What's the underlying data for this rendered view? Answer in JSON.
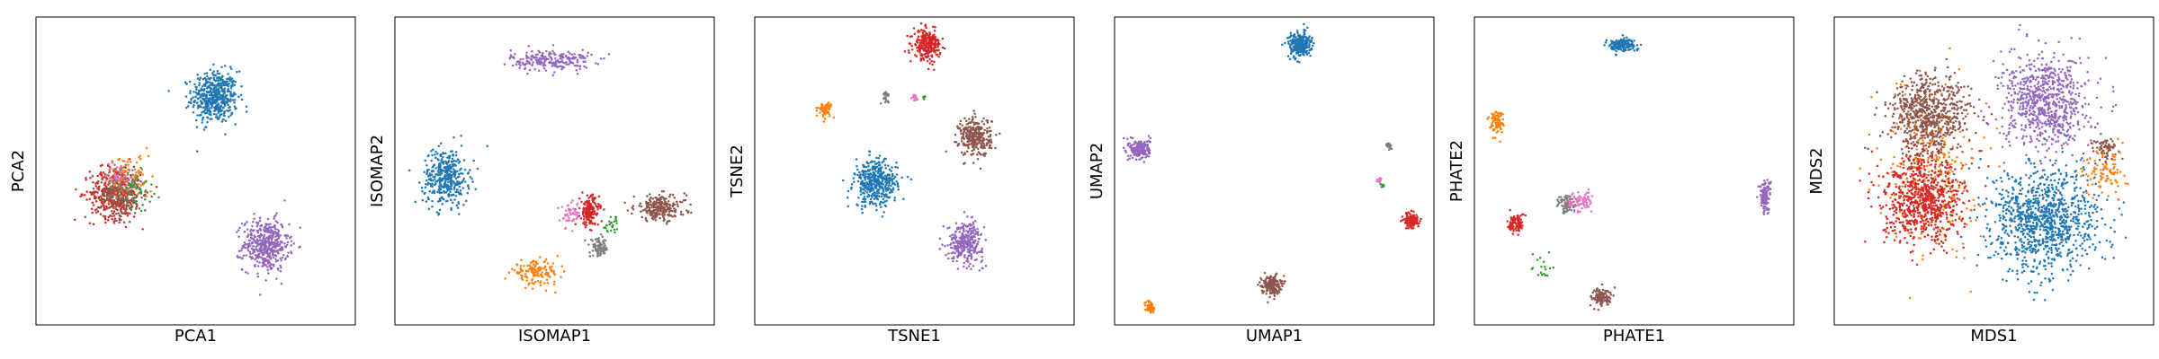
{
  "palette": {
    "blue": "#1f77b4",
    "orange": "#ff7f0e",
    "green": "#2ca02c",
    "red": "#d62728",
    "purple": "#9467bd",
    "brown": "#8c564b",
    "pink": "#e377c2",
    "gray": "#7f7f7f"
  },
  "chart_data": [
    {
      "type": "scatter",
      "title": "",
      "xlabel": "PCA1",
      "ylabel": "PCA2",
      "xlim": [
        0,
        10
      ],
      "ylim": [
        0,
        10
      ],
      "grid": false,
      "ticks": false,
      "legend": "none",
      "clusters": [
        {
          "color": "blue",
          "cx": 5.6,
          "cy": 7.4,
          "rx": 0.85,
          "ry": 1.0,
          "n": 500
        },
        {
          "color": "purple",
          "cx": 7.2,
          "cy": 2.6,
          "rx": 0.85,
          "ry": 1.0,
          "n": 450
        },
        {
          "color": "red",
          "cx": 2.5,
          "cy": 4.3,
          "rx": 0.95,
          "ry": 1.0,
          "n": 380
        },
        {
          "color": "brown",
          "cx": 2.6,
          "cy": 4.2,
          "rx": 0.85,
          "ry": 0.9,
          "n": 220
        },
        {
          "color": "orange",
          "cx": 2.9,
          "cy": 4.8,
          "rx": 0.9,
          "ry": 0.9,
          "n": 90
        },
        {
          "color": "gray",
          "cx": 2.7,
          "cy": 4.6,
          "rx": 0.6,
          "ry": 0.6,
          "n": 50
        },
        {
          "color": "green",
          "cx": 3.1,
          "cy": 4.4,
          "rx": 0.7,
          "ry": 0.7,
          "n": 40
        },
        {
          "color": "pink",
          "cx": 2.6,
          "cy": 4.9,
          "rx": 0.5,
          "ry": 0.5,
          "n": 30
        }
      ]
    },
    {
      "type": "scatter",
      "title": "",
      "xlabel": "ISOMAP1",
      "ylabel": "ISOMAP2",
      "xlim": [
        0,
        10
      ],
      "ylim": [
        0,
        10
      ],
      "grid": false,
      "ticks": false,
      "legend": "none",
      "clusters": [
        {
          "color": "purple",
          "cx": 4.9,
          "cy": 8.6,
          "rx": 1.5,
          "ry": 0.4,
          "n": 230
        },
        {
          "color": "blue",
          "cx": 1.6,
          "cy": 4.8,
          "rx": 0.85,
          "ry": 1.1,
          "n": 380
        },
        {
          "color": "red",
          "cx": 6.1,
          "cy": 3.7,
          "rx": 0.35,
          "ry": 0.6,
          "n": 180
        },
        {
          "color": "brown",
          "cx": 8.3,
          "cy": 3.8,
          "rx": 0.95,
          "ry": 0.5,
          "n": 230
        },
        {
          "color": "orange",
          "cx": 4.4,
          "cy": 1.7,
          "rx": 0.9,
          "ry": 0.45,
          "n": 140
        },
        {
          "color": "gray",
          "cx": 6.4,
          "cy": 2.5,
          "rx": 0.35,
          "ry": 0.35,
          "n": 80
        },
        {
          "color": "pink",
          "cx": 5.5,
          "cy": 3.6,
          "rx": 0.35,
          "ry": 0.5,
          "n": 50
        },
        {
          "color": "green",
          "cx": 6.8,
          "cy": 3.2,
          "rx": 0.3,
          "ry": 0.4,
          "n": 25
        }
      ]
    },
    {
      "type": "scatter",
      "title": "",
      "xlabel": "TSNE1",
      "ylabel": "TSNE2",
      "xlim": [
        0,
        10
      ],
      "ylim": [
        0,
        10
      ],
      "grid": false,
      "ticks": false,
      "legend": "none",
      "clusters": [
        {
          "color": "red",
          "cx": 5.4,
          "cy": 9.1,
          "rx": 0.5,
          "ry": 0.55,
          "n": 260
        },
        {
          "color": "orange",
          "cx": 2.2,
          "cy": 7.0,
          "rx": 0.25,
          "ry": 0.3,
          "n": 60
        },
        {
          "color": "gray",
          "cx": 4.1,
          "cy": 7.4,
          "rx": 0.15,
          "ry": 0.2,
          "n": 25
        },
        {
          "color": "pink",
          "cx": 5.0,
          "cy": 7.4,
          "rx": 0.12,
          "ry": 0.15,
          "n": 15
        },
        {
          "color": "green",
          "cx": 5.3,
          "cy": 7.4,
          "rx": 0.08,
          "ry": 0.1,
          "n": 5
        },
        {
          "color": "brown",
          "cx": 6.9,
          "cy": 6.1,
          "rx": 0.6,
          "ry": 0.75,
          "n": 300
        },
        {
          "color": "blue",
          "cx": 3.8,
          "cy": 4.6,
          "rx": 0.8,
          "ry": 0.9,
          "n": 420
        },
        {
          "color": "purple",
          "cx": 6.6,
          "cy": 2.7,
          "rx": 0.65,
          "ry": 0.75,
          "n": 320
        }
      ]
    },
    {
      "type": "scatter",
      "title": "",
      "xlabel": "UMAP1",
      "ylabel": "UMAP2",
      "xlim": [
        0,
        10
      ],
      "ylim": [
        0,
        10
      ],
      "grid": false,
      "ticks": false,
      "legend": "none",
      "clusters": [
        {
          "color": "blue",
          "cx": 5.8,
          "cy": 9.1,
          "rx": 0.42,
          "ry": 0.48,
          "n": 260
        },
        {
          "color": "purple",
          "cx": 0.8,
          "cy": 5.7,
          "rx": 0.38,
          "ry": 0.4,
          "n": 200
        },
        {
          "color": "gray",
          "cx": 8.6,
          "cy": 5.8,
          "rx": 0.12,
          "ry": 0.15,
          "n": 20
        },
        {
          "color": "pink",
          "cx": 8.3,
          "cy": 4.7,
          "rx": 0.1,
          "ry": 0.12,
          "n": 15
        },
        {
          "color": "green",
          "cx": 8.4,
          "cy": 4.5,
          "rx": 0.08,
          "ry": 0.1,
          "n": 8
        },
        {
          "color": "red",
          "cx": 9.3,
          "cy": 3.4,
          "rx": 0.28,
          "ry": 0.32,
          "n": 120
        },
        {
          "color": "brown",
          "cx": 4.9,
          "cy": 1.3,
          "rx": 0.35,
          "ry": 0.38,
          "n": 170
        },
        {
          "color": "orange",
          "cx": 1.1,
          "cy": 0.6,
          "rx": 0.18,
          "ry": 0.22,
          "n": 50
        }
      ]
    },
    {
      "type": "scatter",
      "title": "",
      "xlabel": "PHATE1",
      "ylabel": "PHATE2",
      "xlim": [
        0,
        10
      ],
      "ylim": [
        0,
        10
      ],
      "grid": false,
      "ticks": false,
      "legend": "none",
      "clusters": [
        {
          "color": "blue",
          "cx": 4.6,
          "cy": 9.1,
          "rx": 0.55,
          "ry": 0.25,
          "n": 170
        },
        {
          "color": "orange",
          "cx": 0.7,
          "cy": 6.6,
          "rx": 0.25,
          "ry": 0.45,
          "n": 80
        },
        {
          "color": "purple",
          "cx": 9.1,
          "cy": 4.2,
          "rx": 0.2,
          "ry": 0.6,
          "n": 130
        },
        {
          "color": "gray",
          "cx": 2.9,
          "cy": 3.9,
          "rx": 0.35,
          "ry": 0.35,
          "n": 80
        },
        {
          "color": "pink",
          "cx": 3.3,
          "cy": 4.0,
          "rx": 0.45,
          "ry": 0.4,
          "n": 80
        },
        {
          "color": "red",
          "cx": 1.3,
          "cy": 3.3,
          "rx": 0.3,
          "ry": 0.4,
          "n": 90
        },
        {
          "color": "green",
          "cx": 2.2,
          "cy": 1.9,
          "rx": 0.6,
          "ry": 0.7,
          "n": 18
        },
        {
          "color": "brown",
          "cx": 4.0,
          "cy": 0.9,
          "rx": 0.4,
          "ry": 0.35,
          "n": 110
        }
      ]
    },
    {
      "type": "scatter",
      "title": "",
      "xlabel": "MDS1",
      "ylabel": "MDS2",
      "xlim": [
        0,
        10
      ],
      "ylim": [
        0,
        10
      ],
      "grid": false,
      "ticks": false,
      "legend": "none",
      "clusters": [
        {
          "color": "purple",
          "cx": 6.6,
          "cy": 7.2,
          "rx": 1.6,
          "ry": 1.8,
          "n": 750
        },
        {
          "color": "orange",
          "cx": 3.0,
          "cy": 5.0,
          "rx": 1.6,
          "ry": 3.0,
          "n": 350
        },
        {
          "color": "orange",
          "cx": 8.5,
          "cy": 5.0,
          "rx": 0.8,
          "ry": 1.0,
          "n": 100
        },
        {
          "color": "brown",
          "cx": 3.0,
          "cy": 6.8,
          "rx": 1.5,
          "ry": 1.6,
          "n": 700
        },
        {
          "color": "red",
          "cx": 2.8,
          "cy": 4.0,
          "rx": 1.5,
          "ry": 1.6,
          "n": 700
        },
        {
          "color": "blue",
          "cx": 6.6,
          "cy": 3.4,
          "rx": 2.0,
          "ry": 2.0,
          "n": 1000
        },
        {
          "color": "brown",
          "cx": 8.5,
          "cy": 5.8,
          "rx": 0.5,
          "ry": 0.5,
          "n": 60
        }
      ]
    }
  ]
}
